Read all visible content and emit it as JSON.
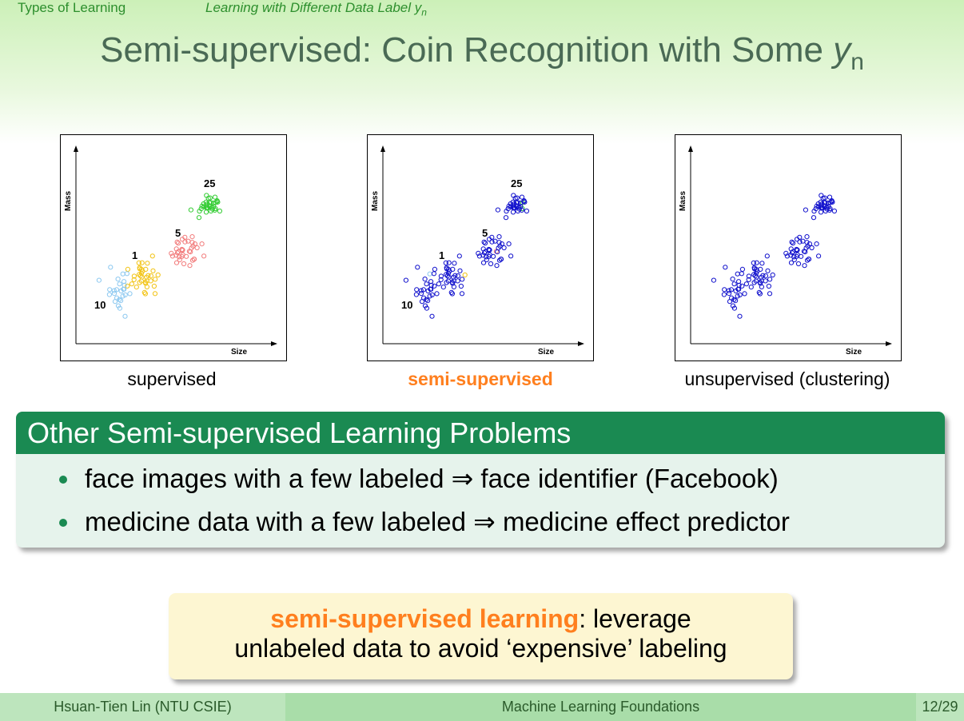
{
  "header": {
    "section": "Types of Learning",
    "subsection_text": "Learning with Different Data Label ",
    "subsection_var": "y",
    "subsection_sub": "n"
  },
  "slide_title": {
    "text": "Semi-supervised: Coin Recognition with Some ",
    "var": "y",
    "sub": "n"
  },
  "plots": {
    "axis_labels": {
      "x": "Size",
      "y": "Mass"
    },
    "cluster_labels": [
      "25",
      "5",
      "1",
      "10"
    ],
    "captions": [
      "supervised",
      "semi-supervised",
      "unsupervised (clustering)"
    ]
  },
  "colors": {
    "cluster_25": "#33cc33",
    "cluster_5": "#f27c7c",
    "cluster_1": "#f2c313",
    "cluster_10": "#8cc8f0",
    "unlabeled": "#1010cc",
    "accent": "#ff7f1e",
    "block_header": "#1a8a52"
  },
  "block": {
    "title": "Other Semi-supervised Learning Problems",
    "items": [
      "face images with a few labeled ⇒ face identifier (Facebook)",
      "medicine data with a few labeled ⇒ medicine effect predictor"
    ]
  },
  "note": {
    "highlight": "semi-supervised learning",
    "rest1": ": leverage",
    "line2": "unlabeled data to avoid ‘expensive’ labeling"
  },
  "footer": {
    "author": "Hsuan-Tien Lin  (NTU CSIE)",
    "course": "Machine Learning Foundations",
    "page": "12/29"
  }
}
